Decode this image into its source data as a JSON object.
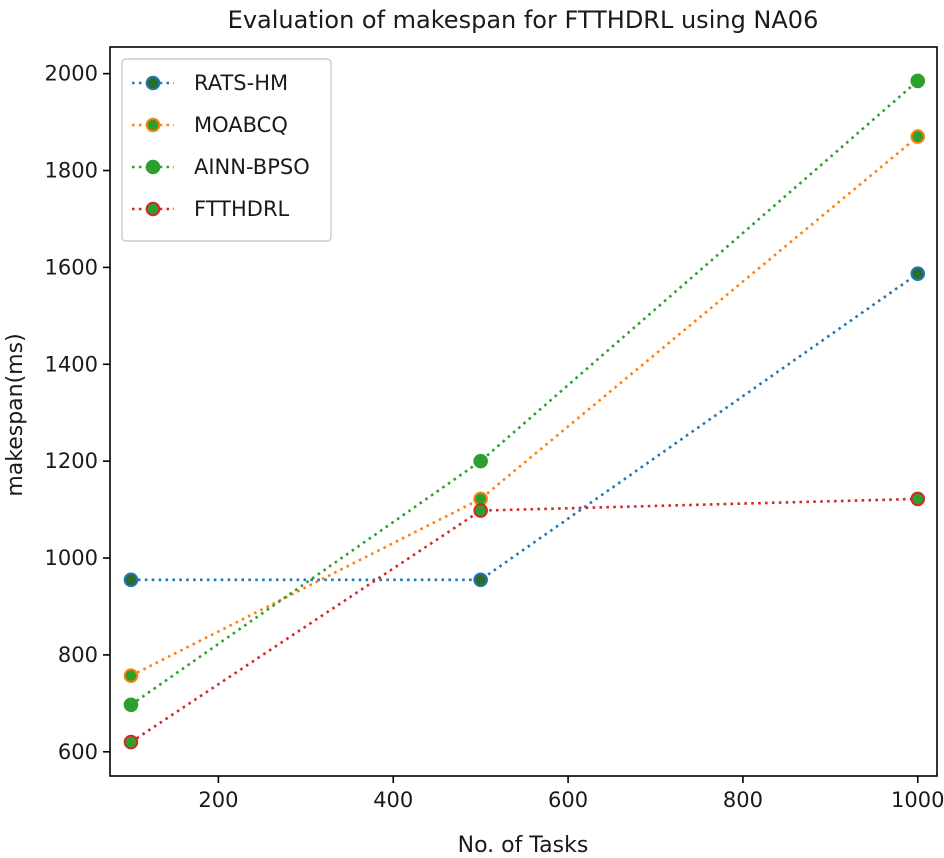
{
  "chart_data": {
    "type": "line",
    "title": "Evaluation of makespan for FTTHDRL using NA06",
    "xlabel": "No. of Tasks",
    "ylabel": "makespan(ms)",
    "xlim": [
      76,
      1022
    ],
    "ylim": [
      550,
      2055
    ],
    "xticks": [
      200,
      400,
      600,
      800,
      1000
    ],
    "yticks": [
      600,
      800,
      1000,
      1200,
      1400,
      1600,
      1800,
      2000
    ],
    "x": [
      100,
      500,
      1000
    ],
    "grid": false,
    "legend_position": "top-left",
    "series": [
      {
        "name": "RATS-HM",
        "color": "#1f77b4",
        "marker_edge": "#1f77b4",
        "values": [
          955,
          955,
          1587
        ]
      },
      {
        "name": "MOABCQ",
        "color": "#ff7f0e",
        "marker_edge": "#ff7f0e",
        "values": [
          757,
          1122,
          1870
        ]
      },
      {
        "name": "AINN-BPSO",
        "color": "#2ca02c",
        "marker_edge": "#2ca02c",
        "values": [
          697,
          1200,
          1985
        ]
      },
      {
        "name": "FTTHDRL",
        "color": "#d62728",
        "marker_edge": "#d62728",
        "values": [
          620,
          1098,
          1122
        ]
      }
    ]
  }
}
